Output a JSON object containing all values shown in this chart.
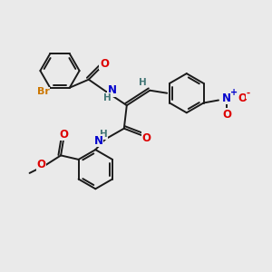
{
  "bg_color": "#eaeaea",
  "bond_color": "#1a1a1a",
  "atom_colors": {
    "O": "#dd0000",
    "N": "#0000cc",
    "Br": "#cc7700",
    "H": "#447777",
    "C": "#1a1a1a"
  },
  "ring_r": 0.72,
  "lw": 1.4
}
